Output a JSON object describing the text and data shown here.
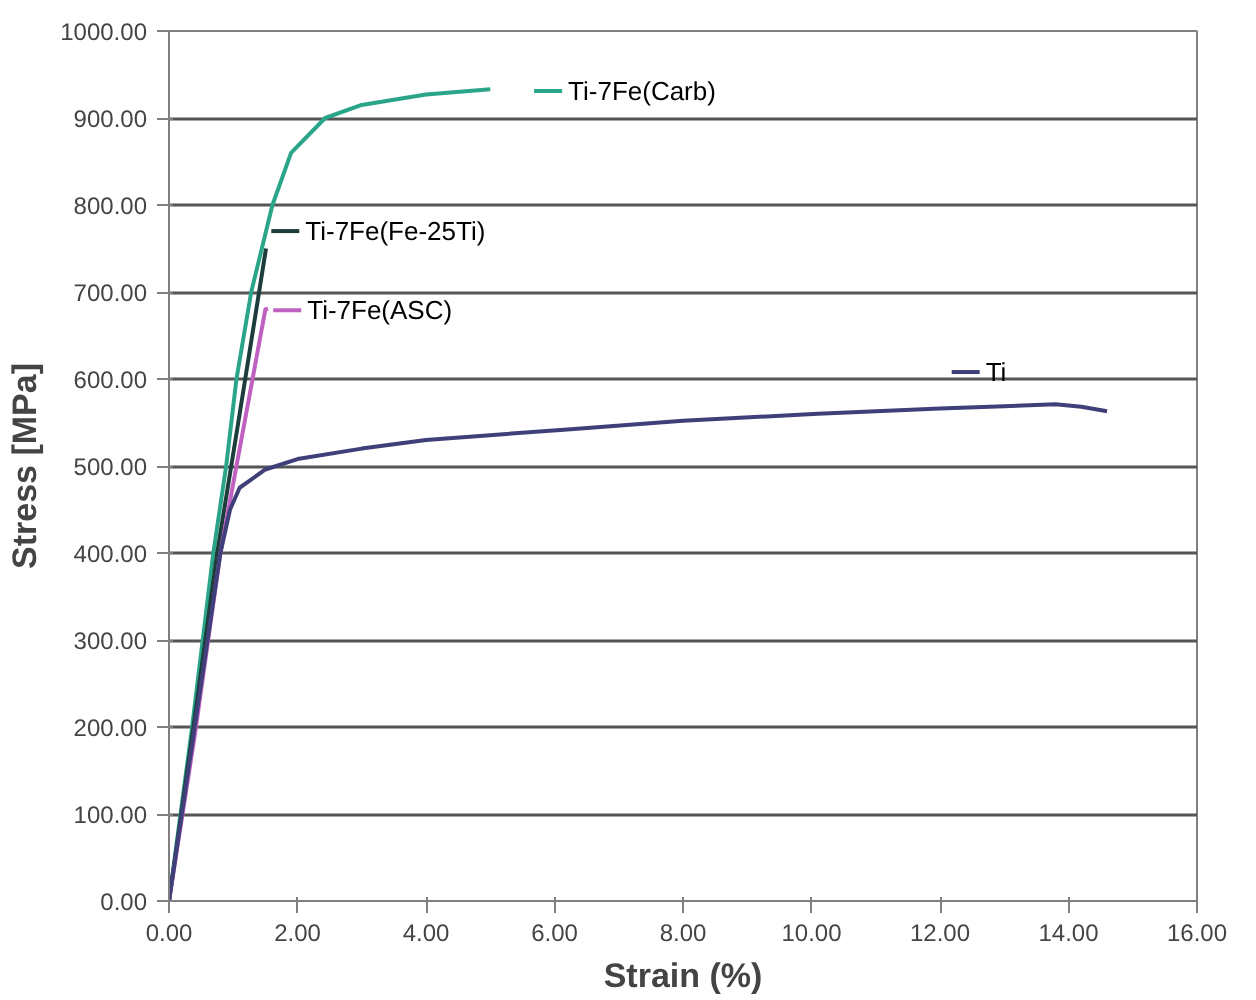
{
  "chart_data": {
    "type": "line",
    "xlabel": "Strain (%)",
    "ylabel": "Stress [MPa]",
    "xlim": [
      0,
      16
    ],
    "ylim": [
      0,
      1000
    ],
    "xticks": [
      {
        "value": 0,
        "label": "0.00"
      },
      {
        "value": 2,
        "label": "2.00"
      },
      {
        "value": 4,
        "label": "4.00"
      },
      {
        "value": 6,
        "label": "6.00"
      },
      {
        "value": 8,
        "label": "8.00"
      },
      {
        "value": 10,
        "label": "10.00"
      },
      {
        "value": 12,
        "label": "12.00"
      },
      {
        "value": 14,
        "label": "14.00"
      },
      {
        "value": 16,
        "label": "16.00"
      }
    ],
    "yticks": [
      {
        "value": 0,
        "label": "0.00"
      },
      {
        "value": 100,
        "label": "100.00"
      },
      {
        "value": 200,
        "label": "200.00"
      },
      {
        "value": 300,
        "label": "300.00"
      },
      {
        "value": 400,
        "label": "400.00"
      },
      {
        "value": 500,
        "label": "500.00"
      },
      {
        "value": 600,
        "label": "600.00"
      },
      {
        "value": 700,
        "label": "700.00"
      },
      {
        "value": 800,
        "label": "800.00"
      },
      {
        "value": 900,
        "label": "900.00"
      },
      {
        "value": 1000,
        "label": "1000.00"
      }
    ],
    "grid": "y",
    "legend": "top right",
    "marker": "none",
    "line_style": "solid",
    "series": [
      {
        "name": "Ti-7Fe(Carb)",
        "color": "#2aa58a",
        "x": [
          0,
          0.36,
          0.69,
          0.89,
          1.05,
          1.28,
          1.61,
          1.9,
          2.43,
          3,
          4,
          5
        ],
        "values": [
          0,
          200,
          400,
          500,
          600,
          700,
          800,
          860,
          900,
          915,
          927,
          933
        ]
      },
      {
        "name": "Ti-7Fe(Fe-25Ti)",
        "color": "#1d3c3c",
        "x": [
          0,
          0.4,
          0.75,
          1.1,
          1.51
        ],
        "values": [
          0,
          210,
          400,
          560,
          750
        ]
      },
      {
        "name": "Ti-7Fe(ASC)",
        "color": "#c060c0",
        "x": [
          0,
          0.4,
          0.8,
          1.2,
          1.5,
          1.54
        ],
        "values": [
          0,
          190,
          400,
          560,
          680,
          681
        ]
      },
      {
        "name": "Ti",
        "color": "#3f3f7a",
        "x": [
          0,
          0.3,
          0.6,
          0.8,
          0.95,
          1.1,
          1.5,
          2,
          3,
          4,
          6.2,
          8,
          10.1,
          12,
          13.8,
          14.2,
          14.6
        ],
        "values": [
          0,
          150,
          300,
          400,
          450,
          475,
          496,
          508,
          520,
          530,
          542,
          552,
          560,
          566,
          571,
          568,
          563
        ]
      }
    ]
  }
}
